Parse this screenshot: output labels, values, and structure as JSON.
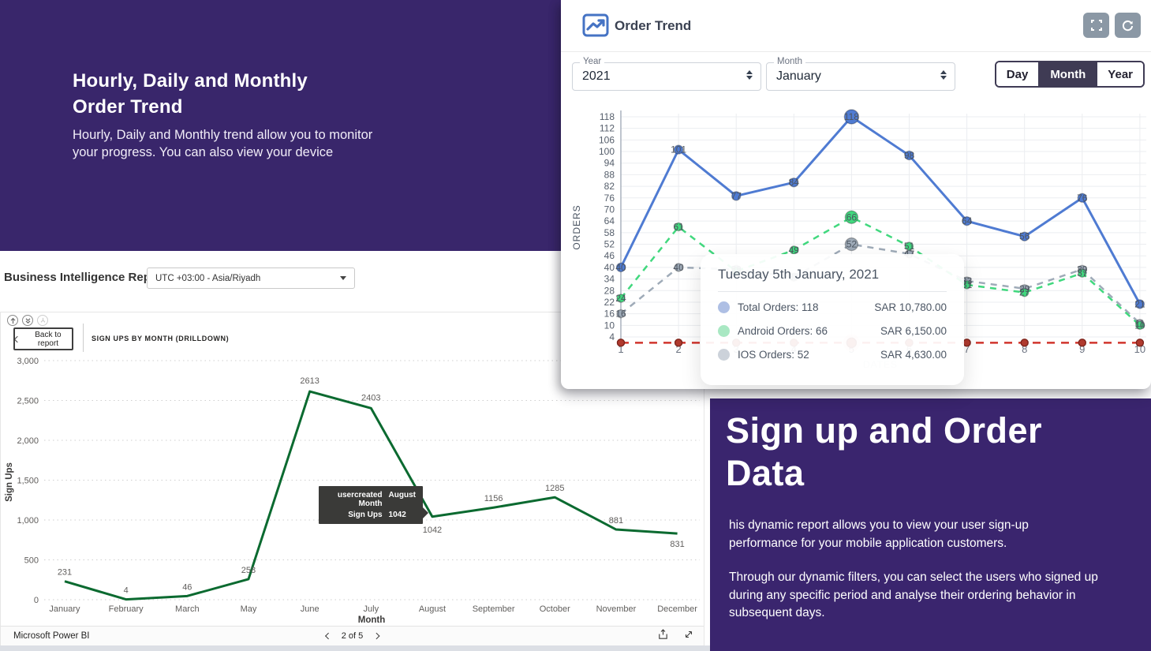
{
  "colors": {
    "purple_panel": "#39266B",
    "toggle_dark": "#3F3B54",
    "pbi_green": "#0B6A30",
    "total_blue": "#4F7BD2",
    "android_green": "#41D87E",
    "ios_gray": "#9FABB8",
    "red_line": "#D0342C",
    "header_btn_gray": "#8B98A5"
  },
  "left_panel": {
    "title": "Hourly, Daily and Monthly Order Trend",
    "body": "Hourly, Daily and Monthly trend allow you to monitor your progress. You can also view your device"
  },
  "bi_bar": {
    "label": "Business Intelligence Report",
    "timezone": "UTC +03:00 - Asia/Riyadh"
  },
  "order_card": {
    "title": "Order Trend",
    "filters": {
      "year_label": "Year",
      "year_value": "2021",
      "month_label": "Month",
      "month_value": "January",
      "toggle_day": "Day",
      "toggle_month": "Month",
      "toggle_year": "Year",
      "toggle_selected": "Month"
    },
    "tooltip": {
      "title": "Tuesday 5th January, 2021",
      "rows": [
        {
          "dot": "#AEBFE4",
          "label": "Total Orders: 118",
          "value": "SAR 10,780.00"
        },
        {
          "dot": "#A9E8C3",
          "label": "Android Orders: 66",
          "value": "SAR 6,150.00"
        },
        {
          "dot": "#CCD2DA",
          "label": "IOS Orders: 52",
          "value": "SAR 4,630.00"
        }
      ]
    }
  },
  "pbi": {
    "back_button": "Back to report",
    "title": "SIGN UPS BY MONTH (DRILLDOWN)",
    "tooltip": {
      "rows": [
        {
          "label": "usercreated Month",
          "value": "August"
        },
        {
          "label": "Sign Ups",
          "value": "1042"
        }
      ]
    },
    "footer": {
      "brand": "Microsoft Power BI",
      "page": "2 of 5"
    }
  },
  "sign_panel": {
    "title": "Sign up and Order Data",
    "p1": "his dynamic report allows you to view your user sign-up performance for your mobile application customers.",
    "p2": "Through our dynamic filters, you can select the users who signed up during any specific period and analyse their ordering behavior in subsequent days."
  },
  "chart_data": [
    {
      "type": "line",
      "title": "Order Trend",
      "xlabel": "DATES",
      "ylabel": "ORDERS",
      "x": [
        1,
        2,
        3,
        4,
        5,
        6,
        7,
        8,
        9,
        10
      ],
      "yticks": [
        4,
        10,
        16,
        22,
        28,
        34,
        40,
        46,
        52,
        58,
        64,
        70,
        76,
        82,
        88,
        94,
        100,
        106,
        112,
        118
      ],
      "ylim": [
        0,
        118
      ],
      "grid": true,
      "highlight_x": 5,
      "series": [
        {
          "name": "Total Orders",
          "color": "#4F7BD2",
          "style": "solid",
          "values": [
            40,
            101,
            77,
            84,
            118,
            98,
            64,
            56,
            76,
            21
          ]
        },
        {
          "name": "Android Orders",
          "color": "#41D87E",
          "style": "dashed",
          "values": [
            24,
            61,
            38,
            49,
            66,
            51,
            31,
            27,
            37,
            10
          ]
        },
        {
          "name": "IOS Orders",
          "color": "#9FABB8",
          "style": "dashed",
          "values": [
            16,
            40,
            39,
            35,
            52,
            47,
            33,
            29,
            39,
            11
          ]
        },
        {
          "name": "",
          "color": "#D0342C",
          "style": "dashed",
          "values": [
            1,
            1,
            1,
            1,
            1,
            1,
            1,
            1,
            1,
            1
          ]
        }
      ]
    },
    {
      "type": "line",
      "title": "SIGN UPS BY MONTH (DRILLDOWN)",
      "xlabel": "Month",
      "ylabel": "Sign Ups",
      "categories": [
        "January",
        "February",
        "March",
        "May",
        "June",
        "July",
        "August",
        "September",
        "October",
        "November",
        "December"
      ],
      "values": [
        231,
        4,
        46,
        258,
        2613,
        2403,
        1042,
        1156,
        1285,
        881,
        831
      ],
      "ylim": [
        0,
        3000
      ],
      "yticks": [
        0,
        500,
        1000,
        1500,
        2000,
        2500,
        3000
      ],
      "line_color": "#0B6A30",
      "grid": "dotted",
      "legend": "none"
    }
  ]
}
